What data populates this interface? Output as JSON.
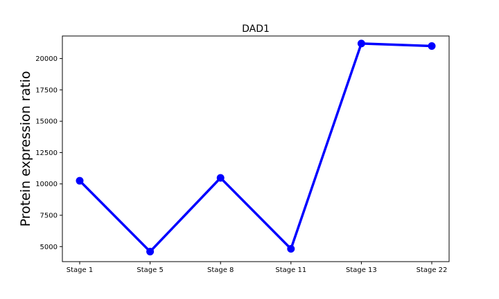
{
  "chart_data": {
    "type": "line",
    "title": "DAD1",
    "xlabel": "",
    "ylabel": "Protein expression ratio",
    "categories": [
      "Stage 1",
      "Stage 5",
      "Stage 8",
      "Stage 11",
      "Stage 13",
      "Stage 22"
    ],
    "series": [
      {
        "values": [
          10250,
          4600,
          10480,
          4820,
          21200,
          21000
        ],
        "color": "#0000ff"
      }
    ],
    "yticks": [
      5000,
      7500,
      10000,
      12500,
      15000,
      17500,
      20000
    ],
    "ytick_labels": [
      "5000",
      "7500",
      "10000",
      "12500",
      "15000",
      "17500",
      "20000"
    ],
    "ylim": [
      3800,
      21800
    ],
    "grid": false,
    "legend": "none"
  }
}
